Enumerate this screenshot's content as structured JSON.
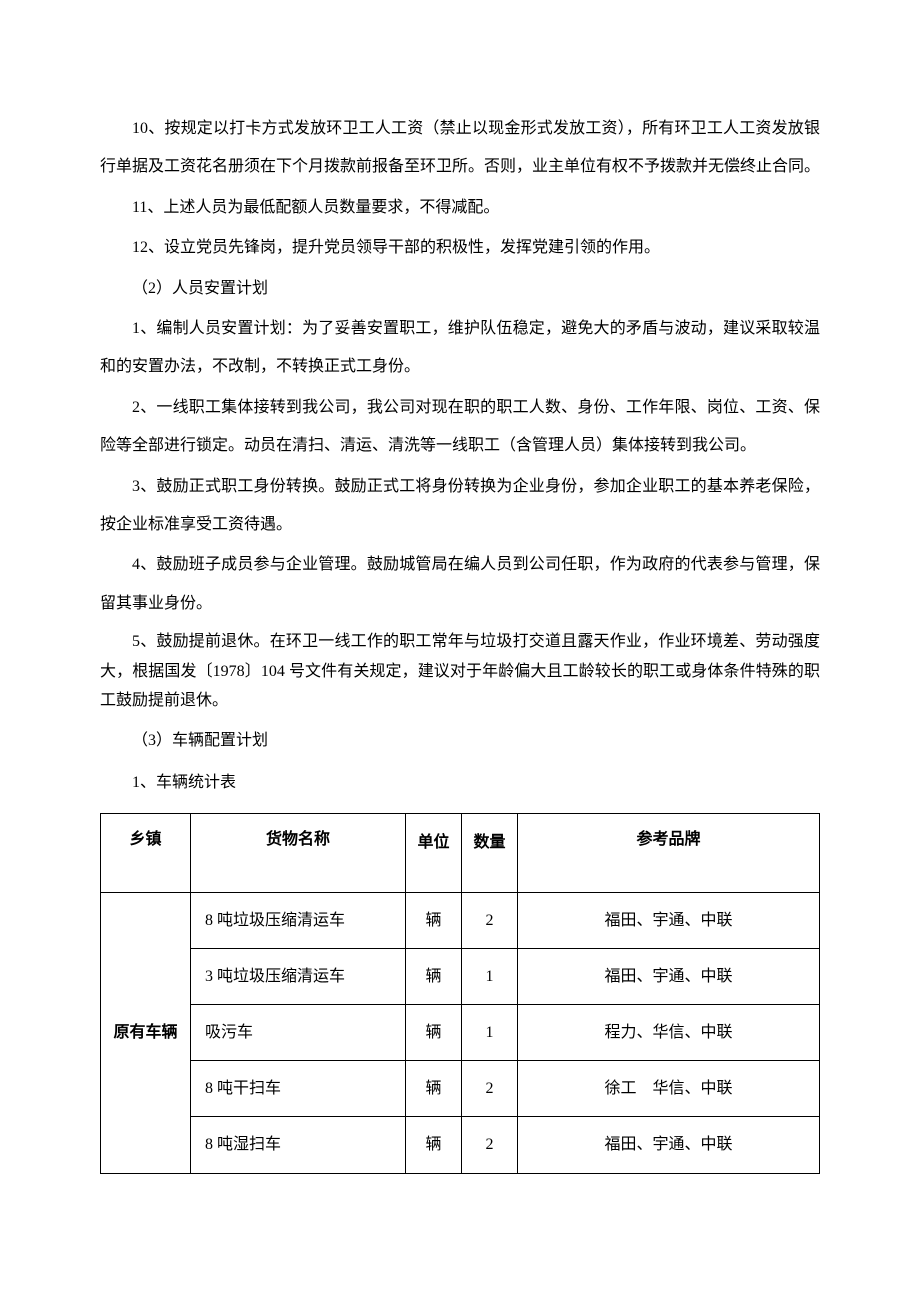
{
  "paragraphs": {
    "p10": "10、按规定以打卡方式发放环卫工人工资（禁止以现金形式发放工资），所有环卫工人工资发放银行单据及工资花名册须在下个月拨款前报备至环卫所。否则，业主单位有权不予拨款并无偿终止合同。",
    "p11": "11、上述人员为最低配额人员数量要求，不得减配。",
    "p12": "12、设立党员先锋岗，提升党员领导干部的积极性，发挥党建引领的作用。",
    "section2_title": "（2）人员安置计划",
    "s2_p1": "1、编制人员安置计划：为了妥善安置职工，维护队伍稳定，避免大的矛盾与波动，建议采取较温和的安置办法，不改制，不转换正式工身份。",
    "s2_p2": "2、一线职工集体接转到我公司，我公司对现在职的职工人数、身份、工作年限、岗位、工资、保险等全部进行锁定。动员在清扫、清运、清洗等一线职工（含管理人员）集体接转到我公司。",
    "s2_p3": "3、鼓励正式职工身份转换。鼓励正式工将身份转换为企业身份，参加企业职工的基本养老保险，按企业标准享受工资待遇。",
    "s2_p4": "4、鼓励班子成员参与企业管理。鼓励城管局在编人员到公司任职，作为政府的代表参与管理，保留其事业身份。",
    "s2_p5": "5、鼓励提前退休。在环卫一线工作的职工常年与垃圾打交道且露天作业，作业环境差、劳动强度大，根据国发〔1978〕104 号文件有关规定，建议对于年龄偏大且工龄较长的职工或身体条件特殊的职工鼓励提前退休。",
    "section3_title": "（3）车辆配置计划",
    "table_title": "1、车辆统计表"
  },
  "table": {
    "headers": {
      "category": "乡镇",
      "goods": "货物名称",
      "unit": "单位",
      "quantity": "数量",
      "brand": "参考品牌"
    },
    "category_label": "原有车辆",
    "rows": [
      {
        "goods": "8 吨垃圾压缩清运车",
        "unit": "辆",
        "qty": "2",
        "brand": "福田、宇通、中联"
      },
      {
        "goods": "3 吨垃圾压缩清运车",
        "unit": "辆",
        "qty": "1",
        "brand": "福田、宇通、中联"
      },
      {
        "goods": "吸污车",
        "unit": "辆",
        "qty": "1",
        "brand": "程力、华信、中联"
      },
      {
        "goods": "8 吨干扫车",
        "unit": "辆",
        "qty": "2",
        "brand": "徐工　华信、中联"
      },
      {
        "goods": "8 吨湿扫车",
        "unit": "辆",
        "qty": "2",
        "brand": "福田、宇通、中联"
      }
    ]
  },
  "styles": {
    "body_font_size": 16,
    "line_height": 2.4,
    "text_color": "#000000",
    "background_color": "#ffffff",
    "border_color": "#000000"
  }
}
